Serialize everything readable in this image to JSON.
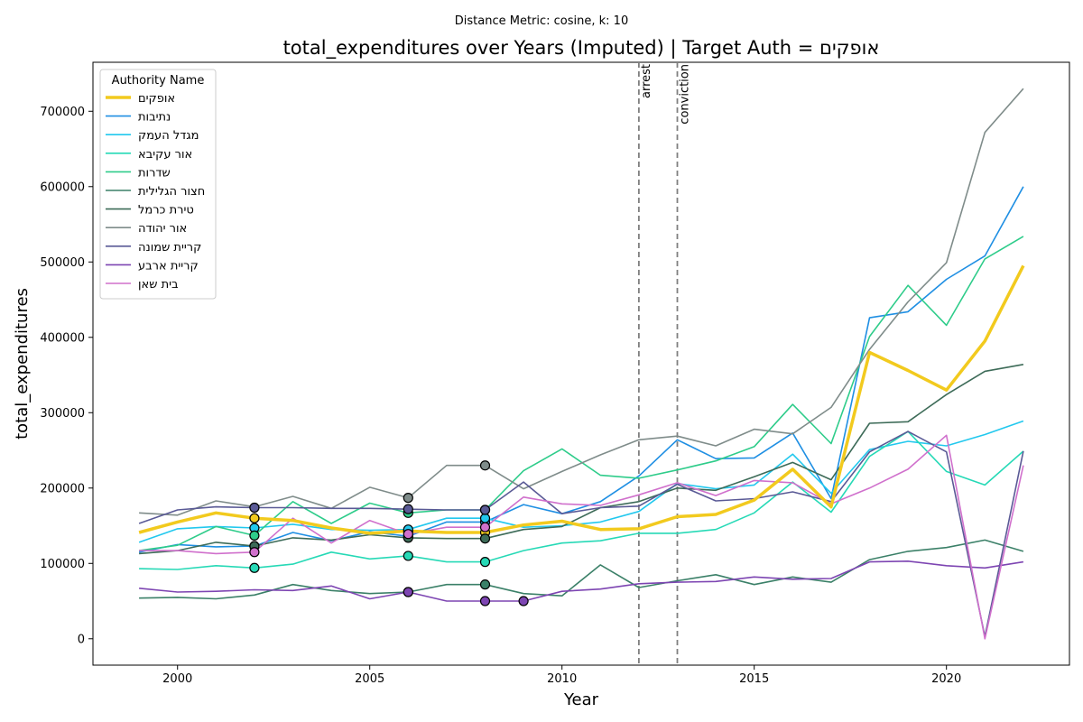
{
  "chart_data": {
    "type": "line",
    "suptitle": "Distance Metric: cosine, k: 10",
    "title": "total_expenditures over Years (Imputed) | Target Auth = אופקים",
    "xlabel": "Year",
    "ylabel": "total_expenditures",
    "xlim": [
      1997.8,
      2023.2
    ],
    "ylim": [
      -35000,
      765000
    ],
    "xticks": [
      2000,
      2005,
      2010,
      2015,
      2020
    ],
    "yticks": [
      0,
      100000,
      200000,
      300000,
      400000,
      500000,
      600000,
      700000
    ],
    "legend_title": "Authority Name",
    "legend_position": "upper left",
    "vertical_lines": [
      {
        "x": 2012,
        "label": "arrest"
      },
      {
        "x": 2013,
        "label": "conviction"
      }
    ],
    "x": [
      1999,
      2000,
      2001,
      2002,
      2003,
      2004,
      2005,
      2006,
      2007,
      2008,
      2009,
      2010,
      2011,
      2012,
      2013,
      2014,
      2015,
      2016,
      2017,
      2018,
      2019,
      2020,
      2021,
      2022
    ],
    "series": [
      {
        "name": "אופקים",
        "color": "#f2ca1e",
        "width": 3.5,
        "values": [
          141000,
          155000,
          167000,
          160000,
          157000,
          147000,
          140000,
          143000,
          141000,
          141000,
          151000,
          156000,
          145000,
          146000,
          162000,
          165000,
          184000,
          225000,
          175000,
          380000,
          356000,
          330000,
          395000,
          495000
        ],
        "imputed_years": [
          2002,
          2006,
          2008
        ]
      },
      {
        "name": "נתיבות",
        "color": "#1f8fe3",
        "width": 1.6,
        "values": [
          115000,
          125000,
          122000,
          123000,
          141000,
          130000,
          142000,
          136000,
          155000,
          155000,
          178000,
          166000,
          182000,
          216000,
          264000,
          239000,
          240000,
          273000,
          186000,
          426000,
          434000,
          477000,
          508000,
          600000
        ],
        "imputed_years": [
          2002,
          2006,
          2008
        ]
      },
      {
        "name": "מגדל העמק",
        "color": "#22c8ee",
        "width": 1.6,
        "values": [
          128000,
          146000,
          149000,
          147000,
          152000,
          145000,
          144000,
          145000,
          160000,
          160000,
          148000,
          150000,
          155000,
          169000,
          206000,
          199000,
          204000,
          245000,
          193000,
          251000,
          262000,
          256000,
          271000,
          289000
        ],
        "imputed_years": [
          2002,
          2006,
          2008
        ]
      },
      {
        "name": "אור עקיבא",
        "color": "#26d9b6",
        "width": 1.6,
        "values": [
          93000,
          92000,
          97000,
          94000,
          99000,
          115000,
          106000,
          110000,
          102000,
          102000,
          117000,
          127000,
          130000,
          140000,
          140000,
          145000,
          167000,
          208000,
          168000,
          242000,
          275000,
          222000,
          204000,
          249000
        ],
        "imputed_years": [
          2002,
          2006,
          2008
        ]
      },
      {
        "name": "שדרות",
        "color": "#2ecc8a",
        "width": 1.6,
        "values": [
          117000,
          124000,
          149000,
          137000,
          182000,
          153000,
          180000,
          167000,
          171000,
          171000,
          223000,
          252000,
          217000,
          213000,
          224000,
          236000,
          255000,
          311000,
          259000,
          401000,
          469000,
          416000,
          504000,
          534000
        ],
        "imputed_years": [
          2002,
          2006,
          2008
        ]
      },
      {
        "name": "חצור הגלילית",
        "color": "#3b8068",
        "width": 1.6,
        "values": [
          54000,
          55000,
          53000,
          58000,
          72000,
          64000,
          60000,
          62000,
          72000,
          72000,
          60000,
          57000,
          98000,
          68000,
          77000,
          85000,
          72000,
          82000,
          75000,
          105000,
          116000,
          121000,
          131000,
          116000
        ],
        "imputed_years": [
          2006,
          2008
        ]
      },
      {
        "name": "טירת כרמל",
        "color": "#3d6b58",
        "width": 1.6,
        "values": [
          113000,
          117000,
          128000,
          123000,
          134000,
          131000,
          138000,
          134000,
          133000,
          133000,
          145000,
          149000,
          174000,
          182000,
          200000,
          197000,
          215000,
          234000,
          211000,
          286000,
          288000,
          324000,
          355000,
          364000
        ],
        "imputed_years": [
          2002,
          2006,
          2008
        ]
      },
      {
        "name": "אור יהודה",
        "color": "#7f8c8a",
        "width": 1.6,
        "values": [
          167000,
          164000,
          183000,
          175000,
          189000,
          173000,
          201000,
          187000,
          230000,
          230000,
          199000,
          222000,
          244000,
          264000,
          269000,
          256000,
          278000,
          272000,
          307000,
          384000,
          447000,
          499000,
          672000,
          730000
        ],
        "imputed_years": [
          2006,
          2008
        ]
      },
      {
        "name": "קריית שמונה",
        "color": "#5a5a96",
        "width": 1.6,
        "values": [
          153000,
          171000,
          175000,
          174000,
          174000,
          173000,
          173000,
          172000,
          171000,
          171000,
          208000,
          166000,
          174000,
          176000,
          205000,
          183000,
          186000,
          195000,
          182000,
          248000,
          275000,
          248000,
          3000,
          249000
        ],
        "imputed_years": [
          2002,
          2006,
          2008
        ]
      },
      {
        "name": "קריית ארבע",
        "color": "#7d45b2",
        "width": 1.6,
        "values": [
          67000,
          62000,
          63000,
          65000,
          64000,
          70000,
          53000,
          62000,
          50000,
          50000,
          50000,
          63000,
          66000,
          73000,
          75000,
          76000,
          82000,
          79000,
          80000,
          102000,
          103000,
          97000,
          94000,
          102000
        ],
        "imputed_years": [
          2006,
          2008,
          2009
        ]
      },
      {
        "name": "בית שאן",
        "color": "#d070cc",
        "width": 1.6,
        "values": [
          117000,
          117000,
          113000,
          115000,
          160000,
          127000,
          157000,
          139000,
          148000,
          148000,
          188000,
          179000,
          177000,
          191000,
          207000,
          190000,
          210000,
          207000,
          179000,
          200000,
          225000,
          270000,
          0,
          230000
        ],
        "imputed_years": [
          2002,
          2006,
          2008
        ]
      }
    ]
  }
}
